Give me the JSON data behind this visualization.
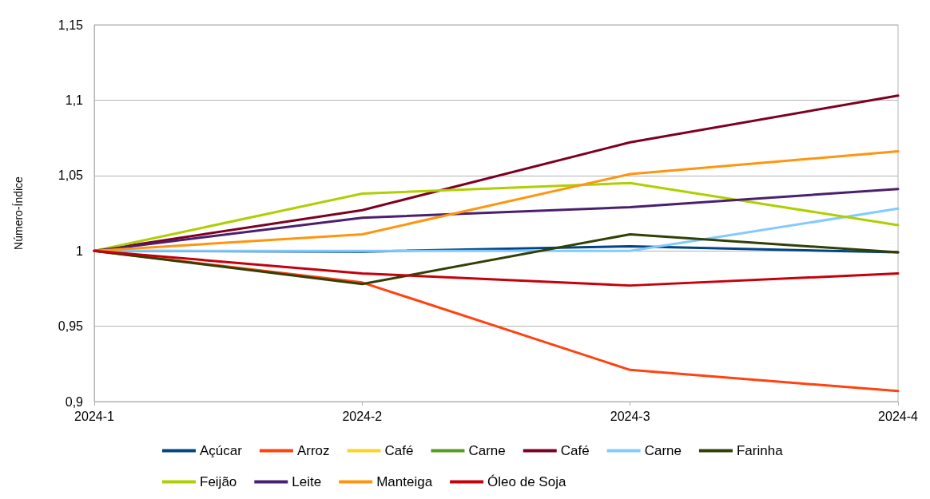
{
  "chart_data": {
    "type": "line",
    "ylabel": "Número-Índice",
    "categories": [
      "2024-1",
      "2024-2",
      "2024-3",
      "2024-4"
    ],
    "series": [
      {
        "name": "Açúcar",
        "color": "#004586",
        "values": [
          1,
          0.9995,
          1.003,
          0.999
        ]
      },
      {
        "name": "Arroz",
        "color": "#ff420e",
        "values": [
          1,
          0.979,
          0.921,
          0.907
        ]
      },
      {
        "name": "Café",
        "color": "#ffd320",
        "values": [
          null,
          null,
          null,
          null
        ]
      },
      {
        "name": "Carne",
        "color": "#579d1c",
        "values": [
          null,
          null,
          null,
          null
        ]
      },
      {
        "name": "Café",
        "color": "#7e0021",
        "values": [
          1,
          1.027,
          1.072,
          1.103
        ]
      },
      {
        "name": "Carne",
        "color": "#83caff",
        "values": [
          1,
          1,
          1,
          1.028
        ]
      },
      {
        "name": "Farinha",
        "color": "#314004",
        "values": [
          1,
          0.978,
          1.011,
          0.999
        ]
      },
      {
        "name": "Feijão",
        "color": "#aecf00",
        "values": [
          1,
          1.038,
          1.045,
          1.017
        ]
      },
      {
        "name": "Leite",
        "color": "#4b1f6f",
        "values": [
          1,
          1.022,
          1.029,
          1.041
        ]
      },
      {
        "name": "Manteiga",
        "color": "#ff950e",
        "values": [
          1,
          1.011,
          1.051,
          1.066
        ]
      },
      {
        "name": "Óleo de Soja",
        "color": "#c5000b",
        "values": [
          1,
          0.985,
          0.977,
          0.985
        ]
      }
    ],
    "ylim": [
      0.9,
      1.15
    ],
    "yticks": [
      {
        "value": 0.9,
        "label": "0,9"
      },
      {
        "value": 0.95,
        "label": "0,95"
      },
      {
        "value": 1,
        "label": "1"
      },
      {
        "value": 1.05,
        "label": "1,05"
      },
      {
        "value": 1.1,
        "label": "1,1"
      },
      {
        "value": 1.15,
        "label": "1,15"
      }
    ],
    "grid": "y",
    "legend": "bottom",
    "marker": "none",
    "line_style": "solid"
  }
}
